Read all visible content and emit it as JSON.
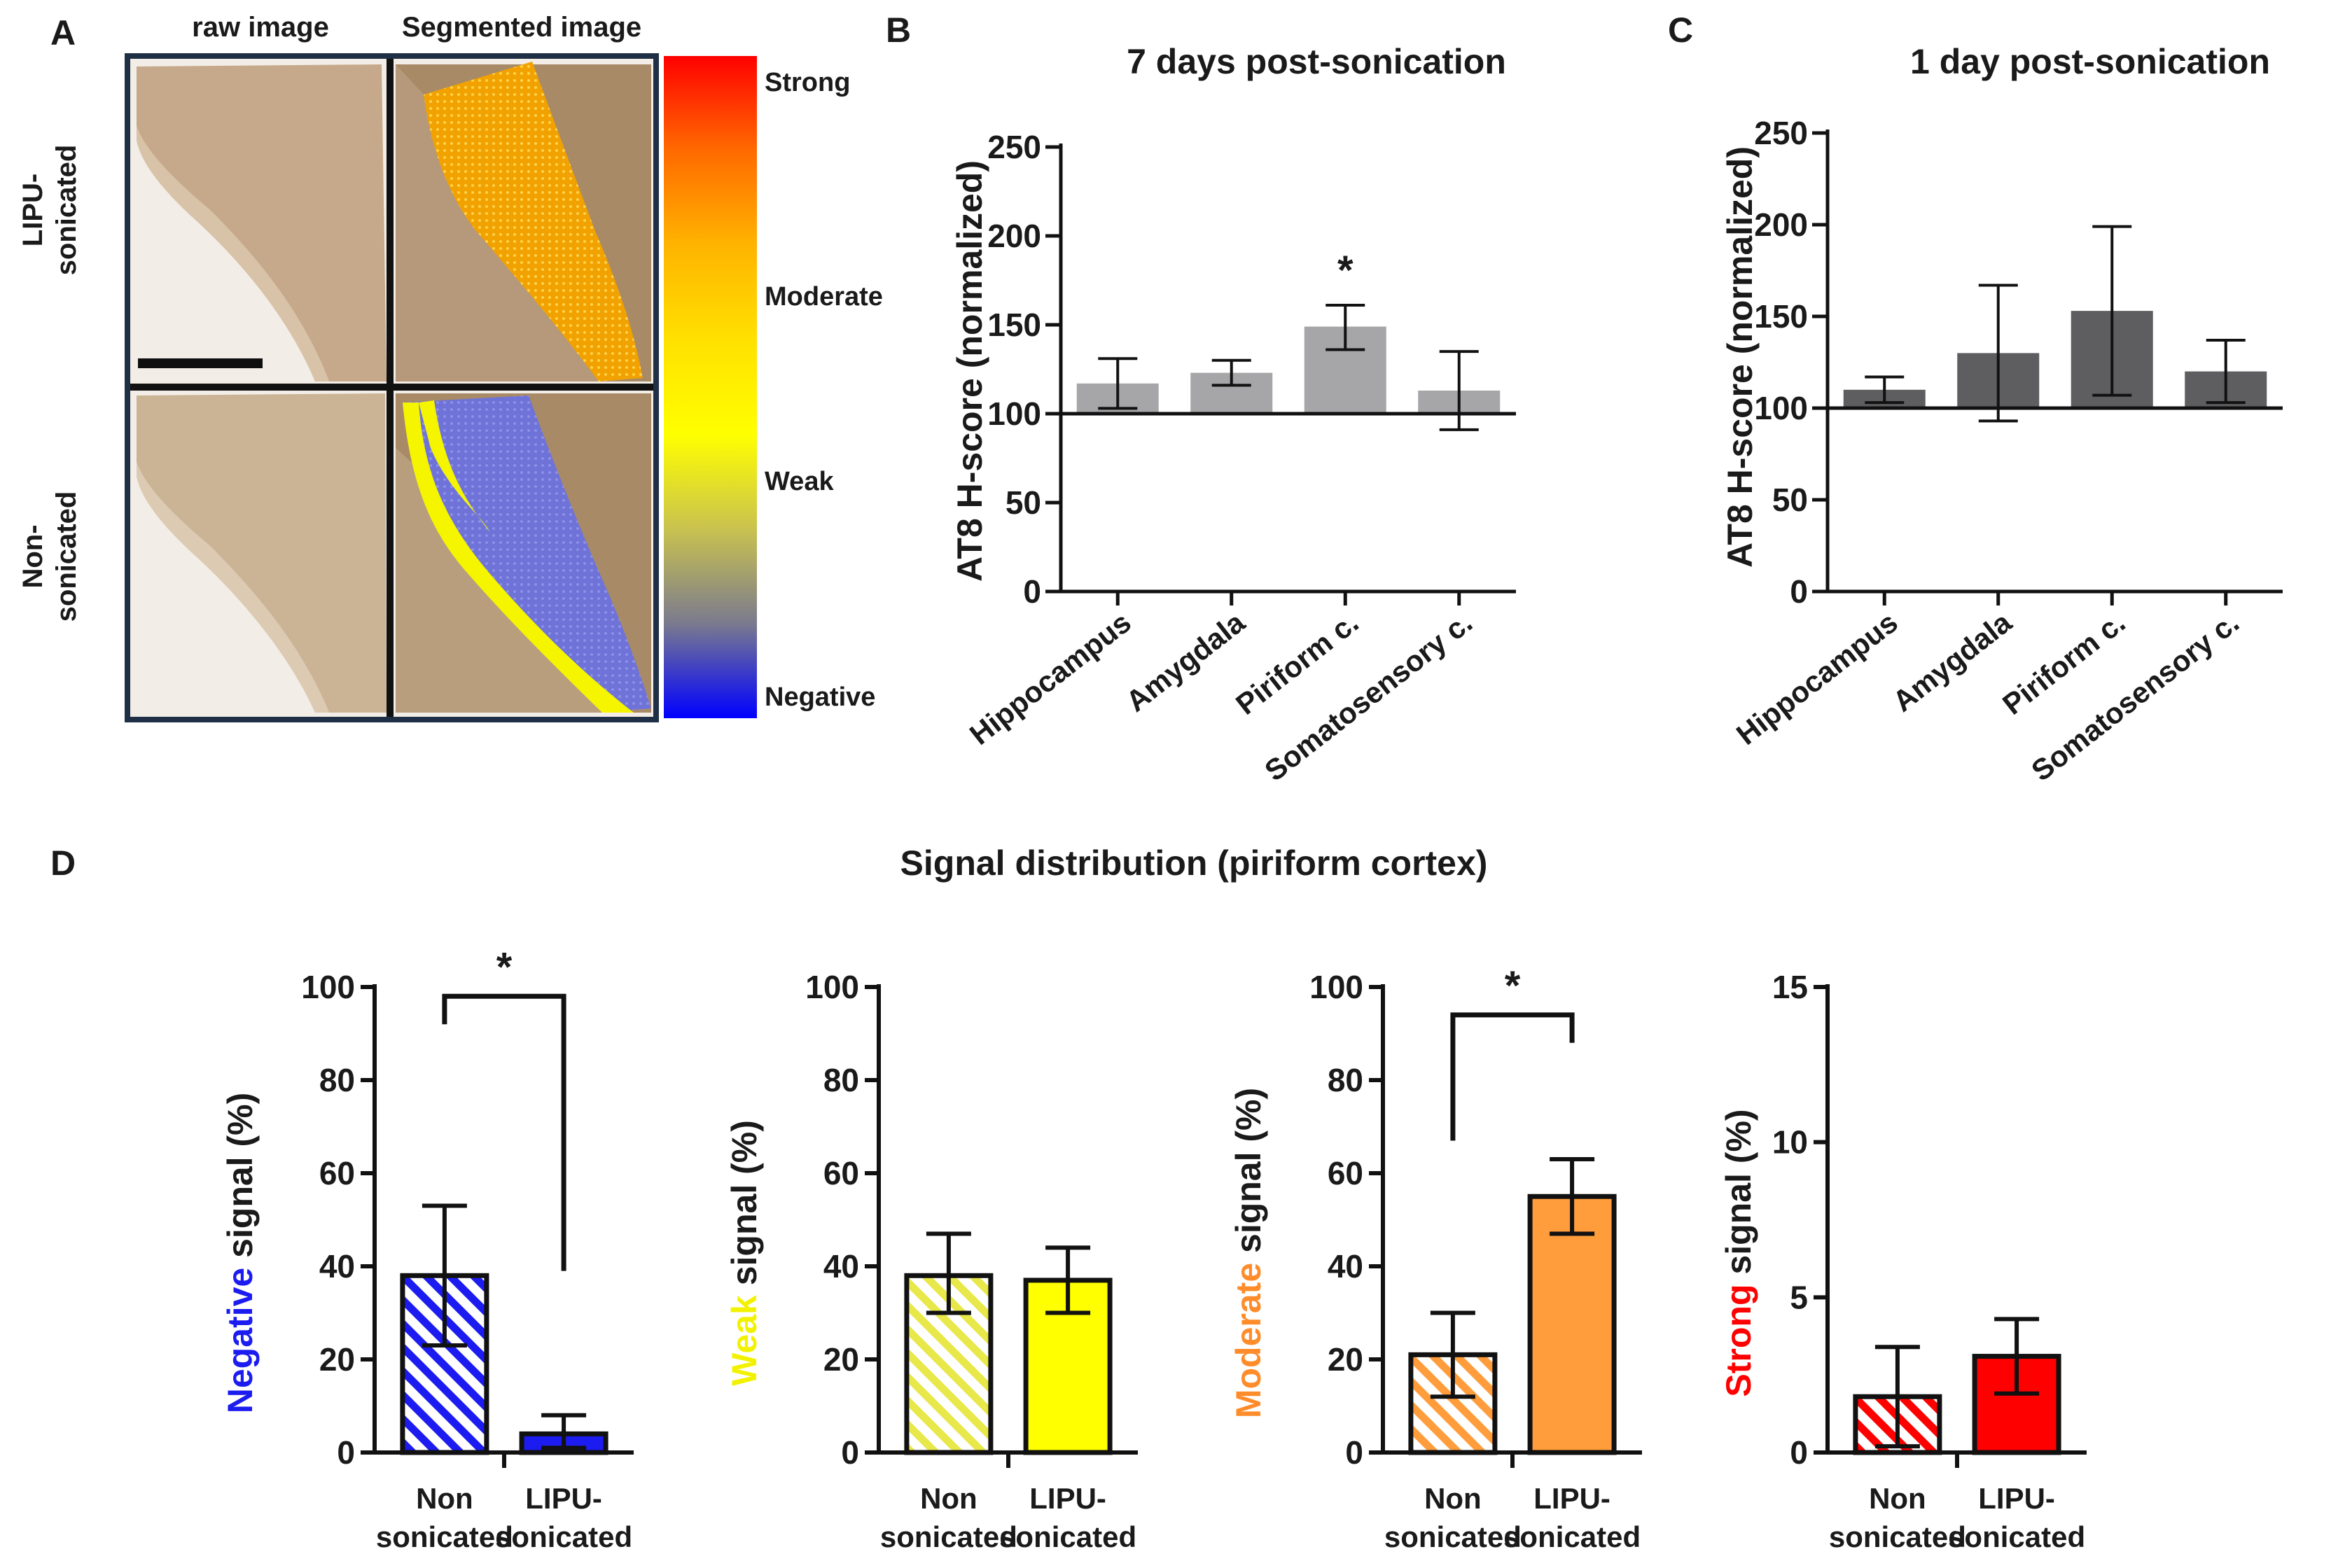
{
  "colors": {
    "bar_b": "#a6a6a9",
    "bar_c": "#5e5e60",
    "negative": "#1c1cf0",
    "weak": "#ffff00",
    "moderate": "#ff9d3c",
    "strong": "#ff0000",
    "tissue": "#c6a98a",
    "tissue_dark": "#a88a66",
    "background": "#f2ede6",
    "frame": "#1f2f45"
  },
  "panel_a": {
    "letter": "A",
    "col_headers": [
      "raw image",
      "Segmented image"
    ],
    "row_labels": [
      [
        "LIPU-",
        "sonicated"
      ],
      [
        "Non-",
        "sonicated"
      ]
    ],
    "scale": {
      "labels": [
        "Strong",
        "Moderate",
        "Weak",
        "Negative"
      ],
      "gradient": [
        "#ff0000",
        "#ff6a00",
        "#ffb400",
        "#ffe100",
        "#ffff00",
        "#c9c24f",
        "#7a7a8e",
        "#0000ff"
      ]
    }
  },
  "chart_data": [
    {
      "id": "B",
      "type": "bar",
      "letter": "B",
      "title": "7 days post-sonication",
      "ylabel": "AT8 H-score (normalized)",
      "xlabel": "",
      "ylim": [
        0,
        250
      ],
      "yticks": [
        0,
        50,
        100,
        150,
        200,
        250
      ],
      "baseline": 100,
      "categories": [
        "Hippocampus",
        "Amygdala",
        "Piriform c.",
        "Somatosensory c."
      ],
      "values": [
        117,
        123,
        149,
        113
      ],
      "err_low": [
        103,
        116,
        136,
        91
      ],
      "err_high": [
        131,
        130,
        161,
        135
      ],
      "annotations": [
        {
          "text": "*",
          "category": "Piriform c."
        }
      ]
    },
    {
      "id": "C",
      "type": "bar",
      "letter": "C",
      "title": "1 day post-sonication",
      "ylabel": "AT8 H-score (normalized)",
      "xlabel": "",
      "ylim": [
        0,
        250
      ],
      "yticks": [
        0,
        50,
        100,
        150,
        200,
        250
      ],
      "baseline": 100,
      "categories": [
        "Hippocampus",
        "Amygdala",
        "Piriform c.",
        "Somatosensory c."
      ],
      "values": [
        110,
        130,
        153,
        120
      ],
      "err_low": [
        103,
        93,
        107,
        103
      ],
      "err_high": [
        117,
        167,
        199,
        137
      ],
      "annotations": []
    },
    {
      "id": "D1",
      "type": "bar",
      "letter": "D",
      "group_title": "Signal distribution (piriform cortex)",
      "ylabel": "Negative signal (%)",
      "ylabel_word": "Negative",
      "ylabel_rest": " signal (%)",
      "ylim": [
        0,
        100
      ],
      "yticks": [
        0,
        20,
        40,
        60,
        80,
        100
      ],
      "categories": [
        [
          "Non",
          "sonicated"
        ],
        [
          "LIPU-",
          "sonicated"
        ]
      ],
      "values": [
        38,
        4
      ],
      "err_low": [
        23,
        1
      ],
      "err_high": [
        53,
        8
      ],
      "significance": "*"
    },
    {
      "id": "D2",
      "type": "bar",
      "ylabel": "Weak signal (%)",
      "ylabel_word": "Weak",
      "ylabel_rest": " signal (%)",
      "ylim": [
        0,
        100
      ],
      "yticks": [
        0,
        20,
        40,
        60,
        80,
        100
      ],
      "categories": [
        [
          "Non",
          "sonicated"
        ],
        [
          "LIPU-",
          "sonicated"
        ]
      ],
      "values": [
        38,
        37
      ],
      "err_low": [
        30,
        30
      ],
      "err_high": [
        47,
        44
      ]
    },
    {
      "id": "D3",
      "type": "bar",
      "ylabel": "Moderate signal (%)",
      "ylabel_word": "Moderate",
      "ylabel_rest": " signal (%)",
      "ylim": [
        0,
        100
      ],
      "yticks": [
        0,
        20,
        40,
        60,
        80,
        100
      ],
      "categories": [
        [
          "Non",
          "sonicated"
        ],
        [
          "LIPU-",
          "sonicated"
        ]
      ],
      "values": [
        21,
        55
      ],
      "err_low": [
        12,
        47
      ],
      "err_high": [
        30,
        63
      ],
      "significance": "*"
    },
    {
      "id": "D4",
      "type": "bar",
      "ylabel": "Strong signal (%)",
      "ylabel_word": "Strong",
      "ylabel_rest": " signal (%)",
      "ylim": [
        0,
        15
      ],
      "yticks": [
        0,
        5,
        10,
        15
      ],
      "categories": [
        [
          "Non",
          "sonicated"
        ],
        [
          "LIPU-",
          "sonicated"
        ]
      ],
      "values": [
        1.8,
        3.1
      ],
      "err_low": [
        0.2,
        1.9
      ],
      "err_high": [
        3.4,
        4.3
      ]
    }
  ]
}
